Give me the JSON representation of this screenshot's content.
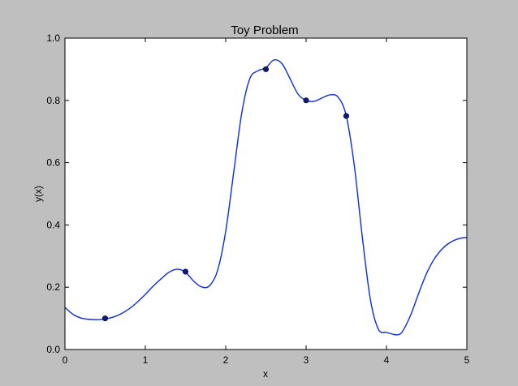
{
  "chart_data": {
    "type": "line",
    "title": "Toy Problem",
    "xlabel": "x",
    "ylabel": "y(x)",
    "xlim": [
      0,
      5
    ],
    "ylim": [
      0,
      1
    ],
    "xticks": [
      "0",
      "1",
      "2",
      "3",
      "4",
      "5"
    ],
    "yticks": [
      "0.0",
      "0.2",
      "0.4",
      "0.6",
      "0.8",
      "1.0"
    ],
    "grid": false,
    "legend": "none",
    "curve": {
      "color": "#0b2be6",
      "x": [
        0,
        0.1,
        0.2,
        0.3,
        0.4,
        0.5,
        0.6,
        0.7,
        0.8,
        0.9,
        1.0,
        1.1,
        1.2,
        1.3,
        1.4,
        1.5,
        1.6,
        1.7,
        1.8,
        1.9,
        2.0,
        2.1,
        2.2,
        2.3,
        2.4,
        2.5,
        2.6,
        2.7,
        2.8,
        2.9,
        3.0,
        3.1,
        3.2,
        3.3,
        3.4,
        3.5,
        3.6,
        3.7,
        3.8,
        3.9,
        4.0,
        4.1,
        4.15,
        4.2,
        4.3,
        4.4,
        4.5,
        4.6,
        4.7,
        4.8,
        4.9,
        5.0
      ],
      "y": [
        0.135,
        0.113,
        0.101,
        0.097,
        0.096,
        0.098,
        0.104,
        0.115,
        0.131,
        0.152,
        0.177,
        0.204,
        0.228,
        0.249,
        0.258,
        0.248,
        0.22,
        0.201,
        0.205,
        0.255,
        0.38,
        0.57,
        0.76,
        0.87,
        0.895,
        0.905,
        0.93,
        0.918,
        0.87,
        0.82,
        0.8,
        0.797,
        0.808,
        0.818,
        0.81,
        0.75,
        0.59,
        0.36,
        0.16,
        0.065,
        0.055,
        0.048,
        0.048,
        0.058,
        0.11,
        0.18,
        0.245,
        0.293,
        0.325,
        0.345,
        0.356,
        0.36
      ]
    },
    "points": {
      "color": "#0a1a8c",
      "x": [
        0.5,
        1.5,
        2.5,
        3.0,
        3.5
      ],
      "y": [
        0.1,
        0.25,
        0.9,
        0.8,
        0.75
      ]
    }
  }
}
